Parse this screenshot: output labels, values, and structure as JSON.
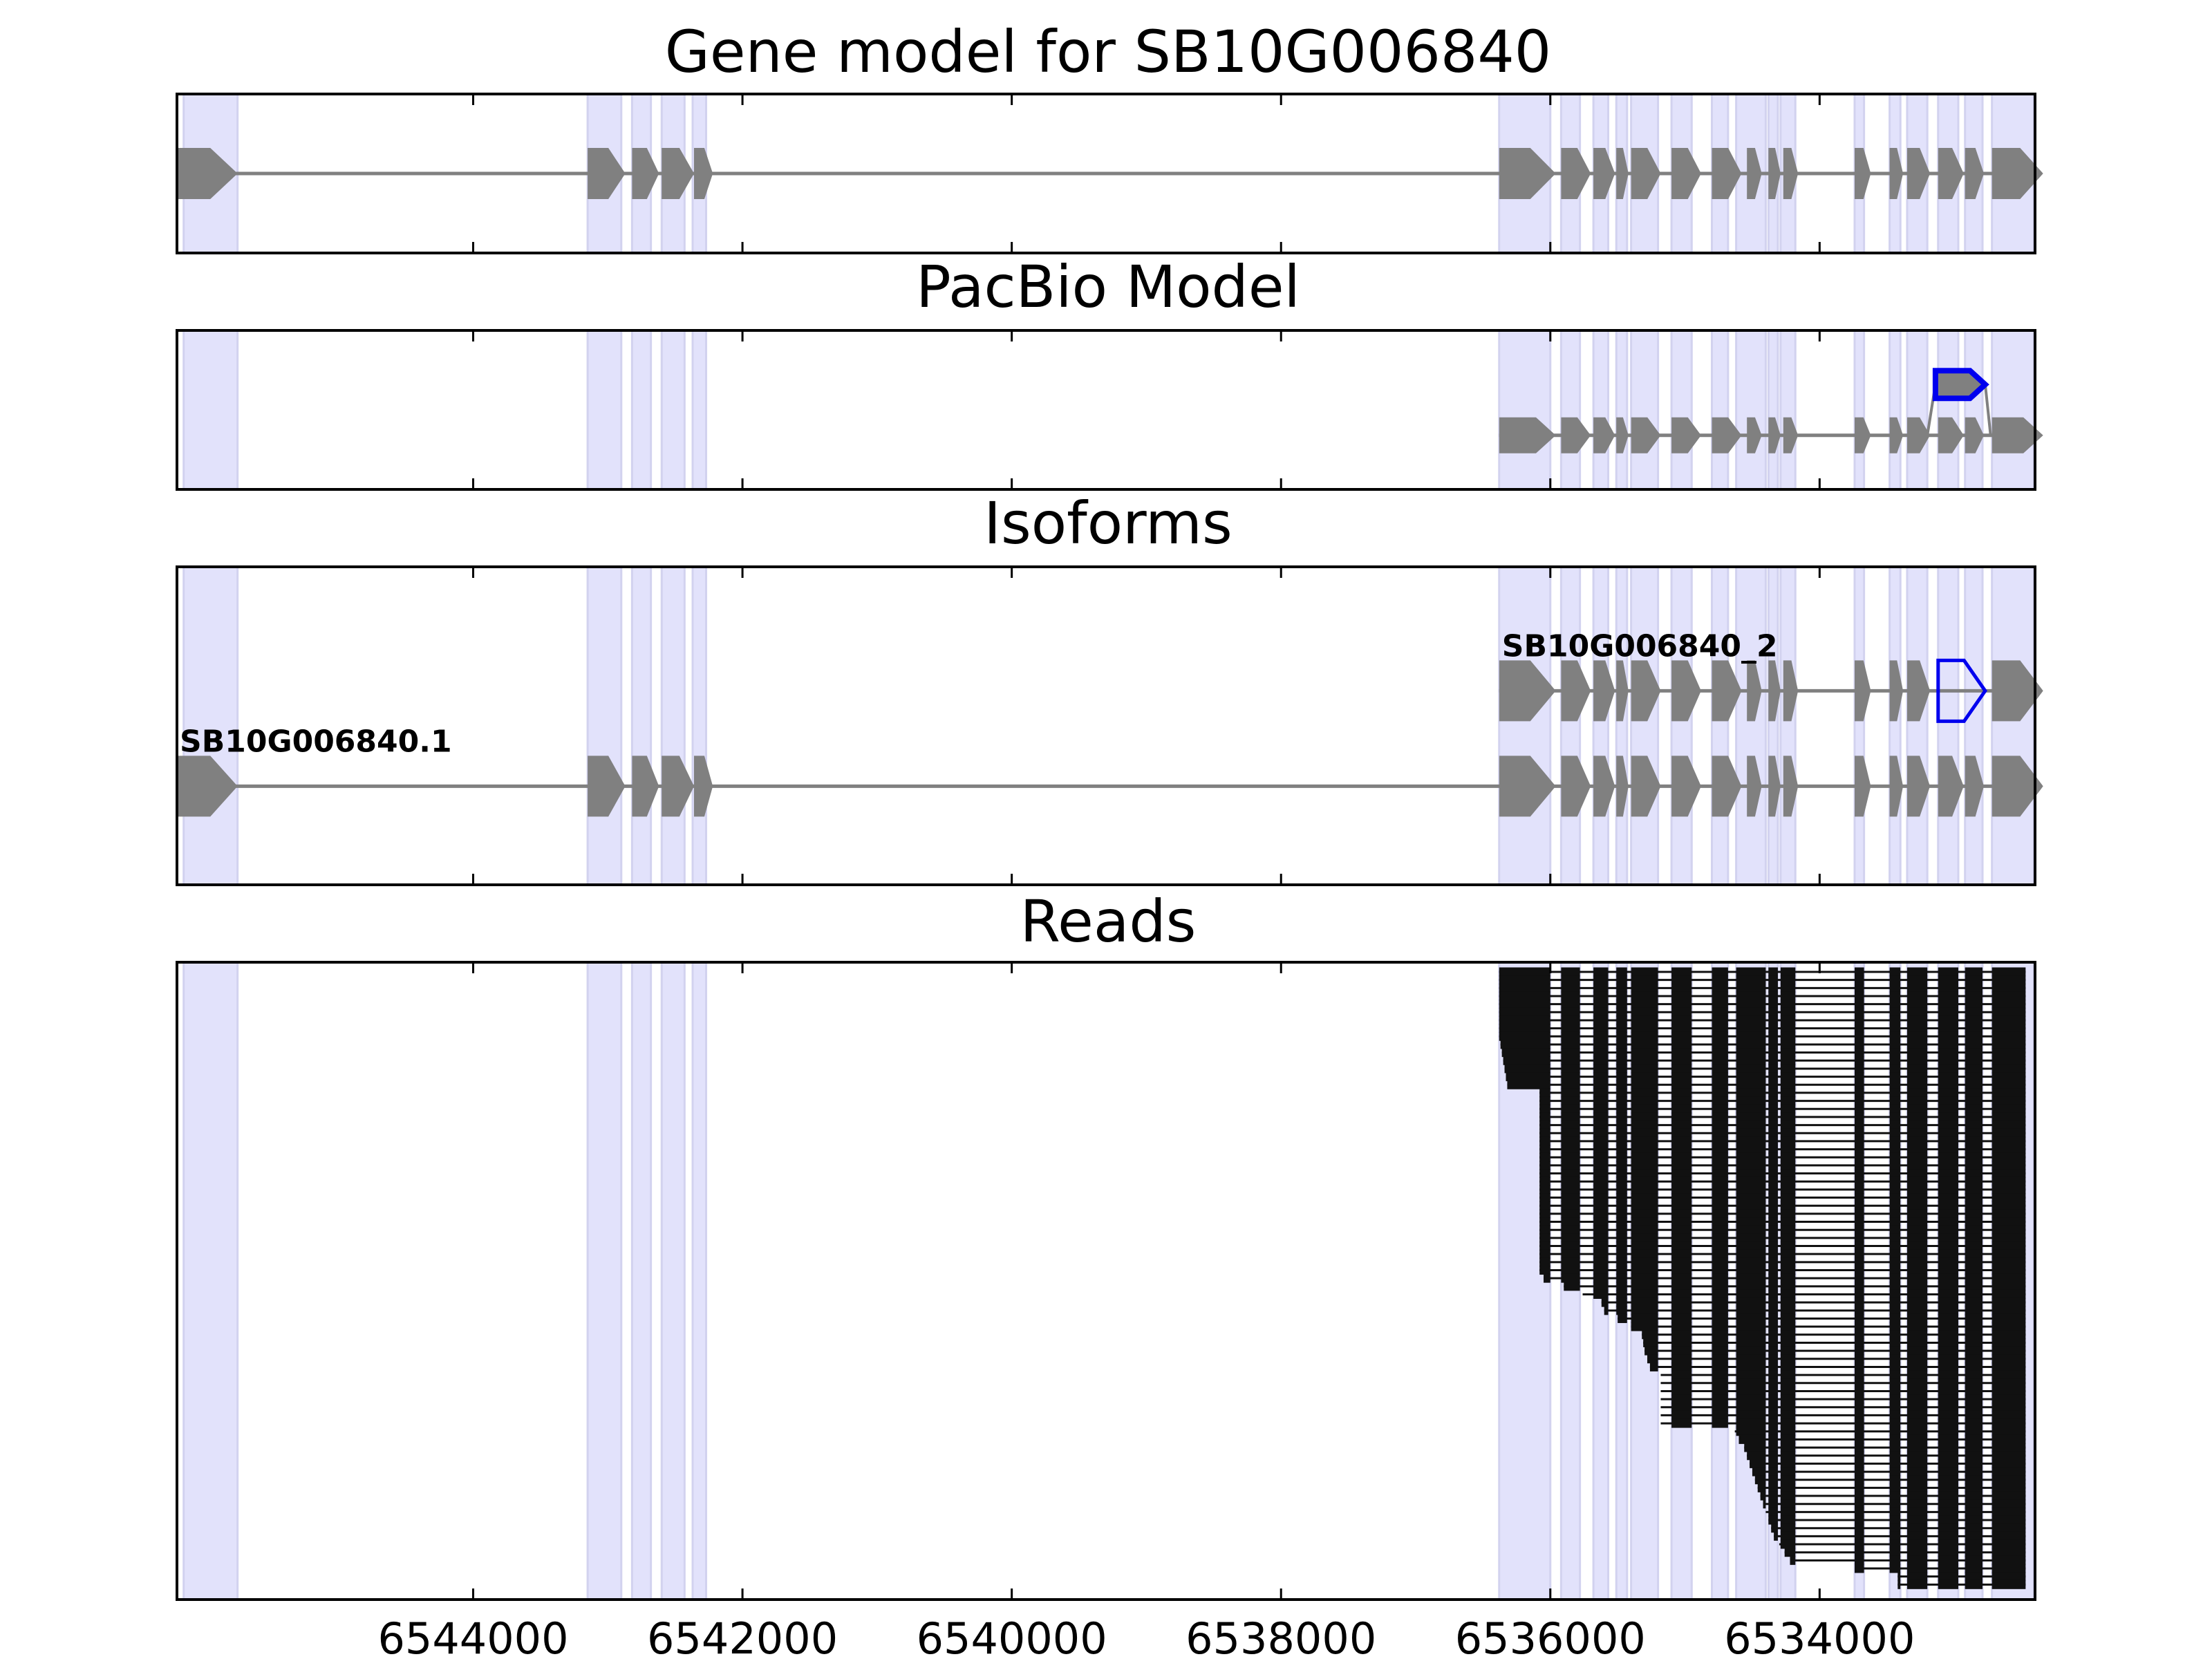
{
  "chart_data": {
    "type": "gene-track",
    "x_domain": [
      6546200,
      6532400
    ],
    "x_ticks": [
      "6544000",
      "6542000",
      "6540000",
      "6538000",
      "6536000",
      "6534000"
    ],
    "shade_regions": [
      [
        6546150,
        6545750
      ],
      [
        6543150,
        6542900
      ],
      [
        6542820,
        6542680
      ],
      [
        6542600,
        6542430
      ],
      [
        6542370,
        6542270
      ],
      [
        6536380,
        6536000
      ],
      [
        6535920,
        6535780
      ],
      [
        6535680,
        6535570
      ],
      [
        6535510,
        6535430
      ],
      [
        6535400,
        6535200
      ],
      [
        6535100,
        6534950
      ],
      [
        6534800,
        6534680
      ],
      [
        6534620,
        6534400
      ],
      [
        6534380,
        6534310
      ],
      [
        6534290,
        6534180
      ],
      [
        6533740,
        6533670
      ],
      [
        6533480,
        6533400
      ],
      [
        6533350,
        6533200
      ],
      [
        6533120,
        6532970
      ],
      [
        6532920,
        6532790
      ],
      [
        6532720,
        6532410
      ]
    ],
    "panels": [
      {
        "title": "Gene model for SB10G006840",
        "tracks": [
          {
            "name": "",
            "y": 0.5,
            "span": [
              6546200,
              6532420
            ],
            "exons": [
              [
                6546200,
                6545750
              ],
              [
                6543150,
                6542870
              ],
              [
                6542820,
                6542620
              ],
              [
                6542600,
                6542360
              ],
              [
                6542360,
                6542220
              ],
              [
                6536380,
                6535960
              ],
              [
                6535920,
                6535700
              ],
              [
                6535680,
                6535520
              ],
              [
                6535510,
                6535420
              ],
              [
                6535400,
                6535180
              ],
              [
                6535100,
                6534880
              ],
              [
                6534800,
                6534580
              ],
              [
                6534540,
                6534430
              ],
              [
                6534380,
                6534290
              ],
              [
                6534270,
                6534160
              ],
              [
                6533740,
                6533620
              ],
              [
                6533480,
                6533380
              ],
              [
                6533350,
                6533180
              ],
              [
                6533120,
                6532930
              ],
              [
                6532920,
                6532780
              ],
              [
                6532720,
                6532340
              ]
            ]
          }
        ]
      },
      {
        "title": "PacBio Model",
        "tracks": [
          {
            "name": "",
            "y": 0.66,
            "span": [
              6536380,
              6532420
            ],
            "exons": [
              [
                6536380,
                6535960
              ],
              [
                6535920,
                6535700
              ],
              [
                6535680,
                6535520
              ],
              [
                6535510,
                6535420
              ],
              [
                6535400,
                6535180
              ],
              [
                6535100,
                6534880
              ],
              [
                6534800,
                6534580
              ],
              [
                6534540,
                6534430
              ],
              [
                6534380,
                6534290
              ],
              [
                6534270,
                6534160
              ],
              [
                6533740,
                6533620
              ],
              [
                6533480,
                6533380
              ],
              [
                6533350,
                6533180
              ],
              [
                6533120,
                6532930
              ],
              [
                6532920,
                6532780
              ],
              [
                6532720,
                6532340
              ]
            ]
          }
        ],
        "highlight": {
          "exon": [
            6533140,
            6532770
          ],
          "y": 0.34,
          "from": 6533200,
          "to": 6532730
        }
      },
      {
        "title": "Isoforms",
        "tracks": [
          {
            "name": "SB10G006840_2",
            "y": 0.39,
            "span": [
              6536380,
              6532420
            ],
            "exons": [
              [
                6536380,
                6535960
              ],
              [
                6535920,
                6535700
              ],
              [
                6535680,
                6535520
              ],
              [
                6535510,
                6535420
              ],
              [
                6535400,
                6535180
              ],
              [
                6535100,
                6534880
              ],
              [
                6534800,
                6534580
              ],
              [
                6534540,
                6534430
              ],
              [
                6534380,
                6534290
              ],
              [
                6534270,
                6534160
              ],
              [
                6533740,
                6533620
              ],
              [
                6533480,
                6533380
              ],
              [
                6533350,
                6533180
              ],
              [
                6532720,
                6532340
              ]
            ],
            "outlined_exon": [
              6533120,
              6532770
            ]
          },
          {
            "name": "SB10G006840.1",
            "y": 0.69,
            "span": [
              6546200,
              6532420
            ],
            "exons": [
              [
                6546200,
                6545750
              ],
              [
                6543150,
                6542870
              ],
              [
                6542820,
                6542620
              ],
              [
                6542600,
                6542360
              ],
              [
                6542360,
                6542220
              ],
              [
                6536380,
                6535960
              ],
              [
                6535920,
                6535700
              ],
              [
                6535680,
                6535520
              ],
              [
                6535510,
                6535420
              ],
              [
                6535400,
                6535180
              ],
              [
                6535100,
                6534880
              ],
              [
                6534800,
                6534580
              ],
              [
                6534540,
                6534430
              ],
              [
                6534380,
                6534290
              ],
              [
                6534270,
                6534160
              ],
              [
                6533740,
                6533620
              ],
              [
                6533480,
                6533380
              ],
              [
                6533350,
                6533180
              ],
              [
                6533120,
                6532930
              ],
              [
                6532920,
                6532780
              ],
              [
                6532720,
                6532340
              ]
            ]
          }
        ]
      },
      {
        "title": "Reads",
        "read_count": 77,
        "read_end": 6532470,
        "read_exons": [
          [
            6536380,
            6536000
          ],
          [
            6535920,
            6535780
          ],
          [
            6535680,
            6535570
          ],
          [
            6535510,
            6535430
          ],
          [
            6535400,
            6535200
          ],
          [
            6535100,
            6534950
          ],
          [
            6534800,
            6534680
          ],
          [
            6534620,
            6534400
          ],
          [
            6534380,
            6534310
          ],
          [
            6534290,
            6534180
          ],
          [
            6533740,
            6533670
          ],
          [
            6533480,
            6533400
          ],
          [
            6533350,
            6533200
          ],
          [
            6533120,
            6532970
          ],
          [
            6532920,
            6532790
          ],
          [
            6532720,
            6532470
          ]
        ],
        "read_starts": [
          6536380,
          6536380,
          6536380,
          6536380,
          6536380,
          6536380,
          6536380,
          6536380,
          6536380,
          6536370,
          6536360,
          6536350,
          6536340,
          6536330,
          6536320,
          6536080,
          6536080,
          6536080,
          6536080,
          6536080,
          6536080,
          6536080,
          6536080,
          6536080,
          6536080,
          6536080,
          6536080,
          6536080,
          6536080,
          6536080,
          6536080,
          6536080,
          6536080,
          6536080,
          6536080,
          6536080,
          6536080,
          6536080,
          6536050,
          6535900,
          6535760,
          6535620,
          6535600,
          6535500,
          6535400,
          6535320,
          6535310,
          6535300,
          6535280,
          6535260,
          6535180,
          6535180,
          6535180,
          6535180,
          6535180,
          6535180,
          6535180,
          6534630,
          6534600,
          6534560,
          6534540,
          6534520,
          6534500,
          6534480,
          6534460,
          6534440,
          6534420,
          6534400,
          6534380,
          6534360,
          6534340,
          6534300,
          6534260,
          6534220,
          6533740,
          6533420,
          6533420
        ]
      }
    ]
  }
}
